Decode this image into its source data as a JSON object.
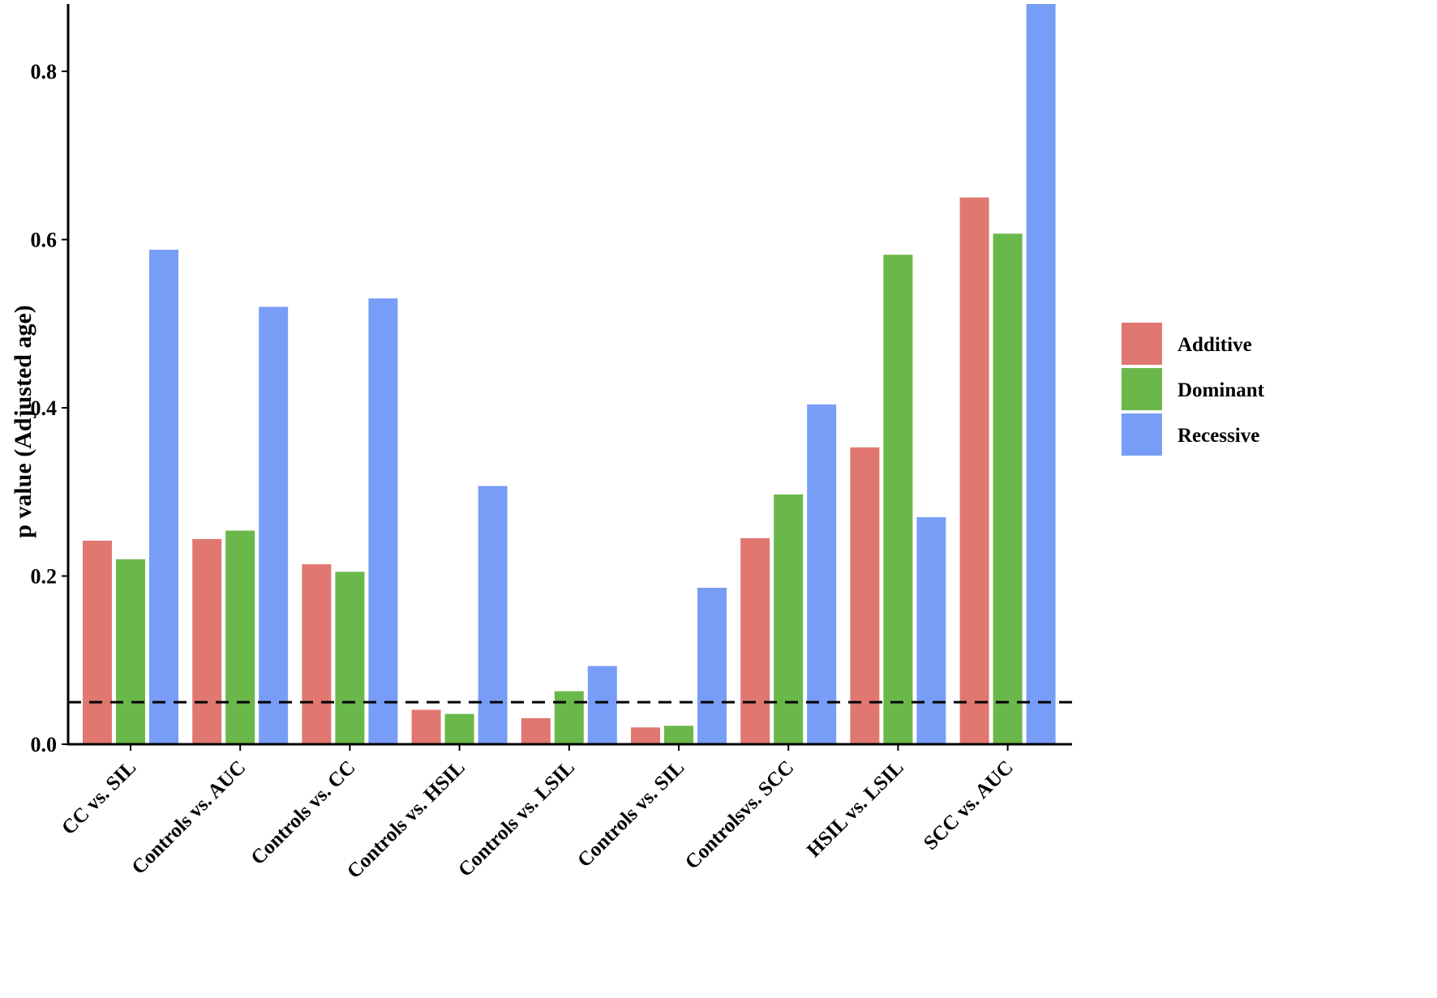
{
  "chart_data": {
    "type": "bar",
    "title": "",
    "xlabel": "",
    "ylabel": "p value (Adjusted age)",
    "ylim": [
      0,
      0.88
    ],
    "yticks": [
      "0.0",
      "0.2",
      "0.4",
      "0.6",
      "0.8"
    ],
    "reference_line": {
      "value": 0.05,
      "style": "dashed"
    },
    "grid": false,
    "legend_position": "right",
    "categories": [
      "CC vs. SIL",
      "Controls vs. AUC",
      "Controls vs. CC",
      "Controls vs. HSIL",
      "Controls vs. LSIL",
      "Controls vs. SIL",
      "Controlsvs. SCC",
      "HSIL vs. LSIL",
      "SCC vs. AUC"
    ],
    "series": [
      {
        "name": "Additive",
        "color": "#E07770",
        "values": [
          0.242,
          0.244,
          0.214,
          0.041,
          0.031,
          0.02,
          0.245,
          0.353,
          0.65
        ]
      },
      {
        "name": "Dominant",
        "color": "#6AB84A",
        "values": [
          0.22,
          0.254,
          0.205,
          0.036,
          0.063,
          0.022,
          0.297,
          0.582,
          0.607
        ]
      },
      {
        "name": "Recessive",
        "color": "#779DF7",
        "values": [
          0.588,
          0.52,
          0.53,
          0.307,
          0.093,
          0.186,
          0.404,
          0.27,
          0.88
        ]
      }
    ]
  }
}
